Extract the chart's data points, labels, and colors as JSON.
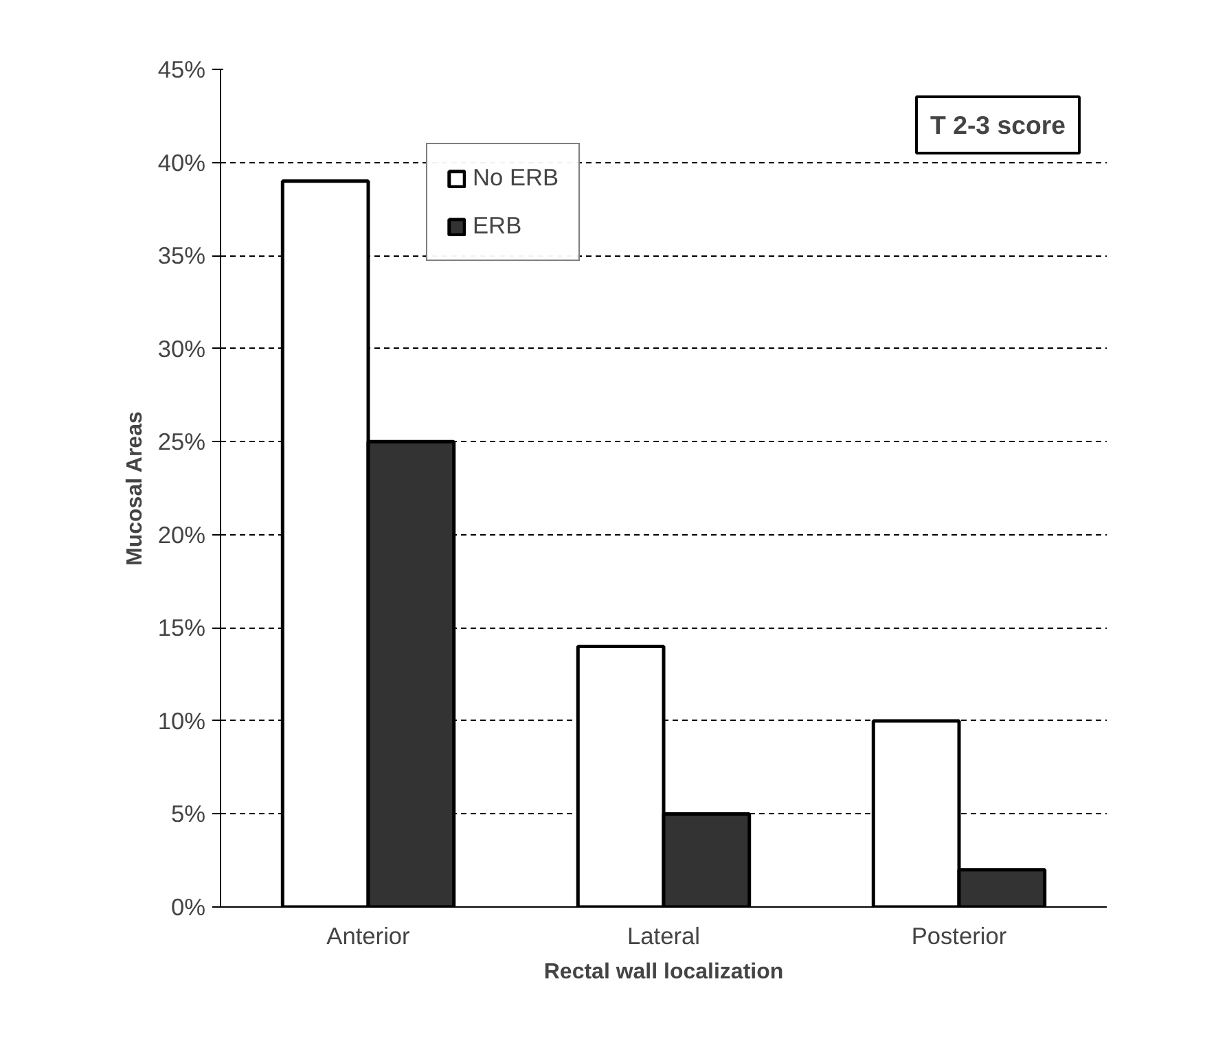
{
  "chart_data": {
    "type": "bar",
    "xlabel": "Rectal wall localization",
    "ylabel": "Mucosal Areas",
    "categories": [
      "Anterior",
      "Lateral",
      "Posterior"
    ],
    "series": [
      {
        "name": "No ERB",
        "color": "#ffffff",
        "values": [
          39,
          14,
          10
        ]
      },
      {
        "name": "ERB",
        "color": "#333333",
        "values": [
          25,
          5,
          2
        ]
      }
    ],
    "ylim": [
      0,
      45
    ],
    "yticks": [
      {
        "value": 0,
        "label": "0%"
      },
      {
        "value": 5,
        "label": "5%"
      },
      {
        "value": 10,
        "label": "10%"
      },
      {
        "value": 15,
        "label": "15%"
      },
      {
        "value": 20,
        "label": "20%"
      },
      {
        "value": 25,
        "label": "25%"
      },
      {
        "value": 30,
        "label": "30%"
      },
      {
        "value": 35,
        "label": "35%"
      },
      {
        "value": 40,
        "label": "40%"
      },
      {
        "value": 45,
        "label": "45%"
      }
    ],
    "grid": "y",
    "legend": "top left",
    "annotations": [
      "T 2-3 score"
    ]
  }
}
